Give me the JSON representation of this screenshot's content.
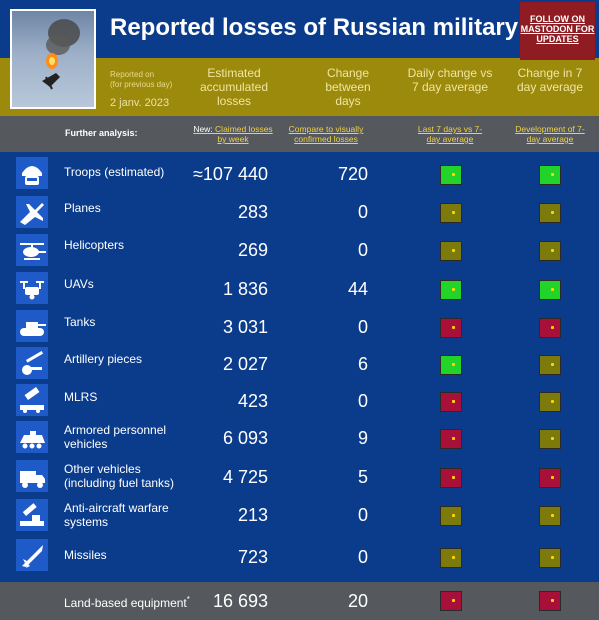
{
  "header": {
    "title": "Reported losses of Russian military",
    "follow": "FOLLOW ON MASTODON FOR UPDATES"
  },
  "subheader": {
    "reported_on": "Reported on",
    "for_previous_day": "(for previous day)",
    "date": "2 janv. 2023",
    "col_estimated": "Estimated accumulated losses",
    "col_change": "Change between days",
    "col_daily": "Daily change vs 7 day average",
    "col_change7": "Change in 7 day average"
  },
  "analysis": {
    "further": "Further analysis:",
    "new_prefix": "New: ",
    "claimed": "Claimed losses by week",
    "compare": "Compare to visually confirmed losses",
    "last7": "Last 7 days vs 7-day average",
    "development": "Development of 7-day average"
  },
  "colors": {
    "green": "#22d42a",
    "olive": "#7c7a0a",
    "red": "#a8103a"
  },
  "rows": [
    {
      "label": "Troops (estimated)",
      "value": "≈107 440",
      "change": "720",
      "daily": "green",
      "trend": "green",
      "icon": "soldier-helmet-icon"
    },
    {
      "label": "Planes",
      "value": "283",
      "change": "0",
      "daily": "olive",
      "trend": "olive",
      "icon": "plane-icon"
    },
    {
      "label": "Helicopters",
      "value": "269",
      "change": "0",
      "daily": "olive",
      "trend": "olive",
      "icon": "helicopter-icon"
    },
    {
      "label": "UAVs",
      "value": "1 836",
      "change": "44",
      "daily": "green",
      "trend": "green",
      "icon": "drone-icon"
    },
    {
      "label": "Tanks",
      "value": "3 031",
      "change": "0",
      "daily": "red",
      "trend": "red",
      "icon": "tank-icon"
    },
    {
      "label": "Artillery pieces",
      "value": "2 027",
      "change": "6",
      "daily": "green",
      "trend": "olive",
      "icon": "artillery-icon"
    },
    {
      "label": "MLRS",
      "value": "423",
      "change": "0",
      "daily": "red",
      "trend": "olive",
      "icon": "mlrs-icon"
    },
    {
      "label": "Armored personnel vehicles",
      "value": "6 093",
      "change": "9",
      "daily": "red",
      "trend": "olive",
      "icon": "apc-icon"
    },
    {
      "label": "Other vehicles (including fuel tanks)",
      "value": "4 725",
      "change": "5",
      "daily": "red",
      "trend": "red",
      "icon": "truck-icon"
    },
    {
      "label": "Anti-aircraft warfare systems",
      "value": "213",
      "change": "0",
      "daily": "olive",
      "trend": "olive",
      "icon": "anti-aircraft-icon"
    },
    {
      "label": "Missiles",
      "value": "723",
      "change": "0",
      "daily": "olive",
      "trend": "olive",
      "icon": "missile-icon"
    }
  ],
  "footer": {
    "label": "Land-based equipment",
    "marker": "*",
    "value": "16 693",
    "change": "20",
    "daily": "red",
    "trend": "red"
  }
}
